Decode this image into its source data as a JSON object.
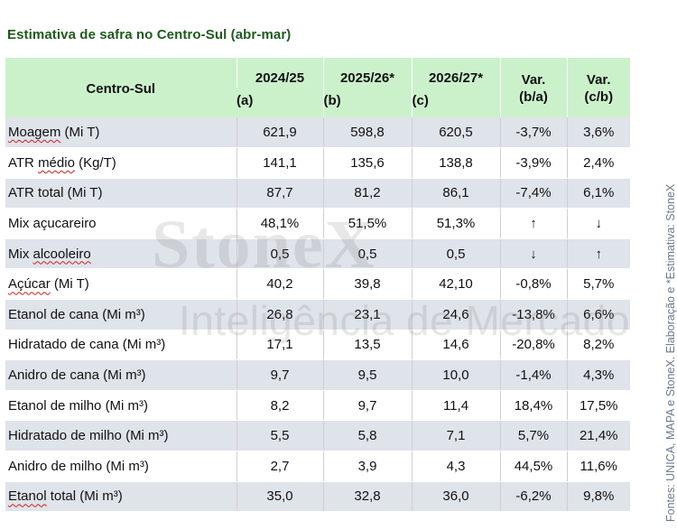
{
  "title": "Estimativa de safra no Centro-Sul (abr-mar)",
  "header": {
    "row_label": "Centro-Sul",
    "years": [
      "2024/25",
      "2025/26*",
      "2026/27*"
    ],
    "letters": [
      "(a)",
      "(b)",
      "(c)"
    ],
    "var1_top": "Var.",
    "var1_bottom": "(b/a)",
    "var2_top": "Var.",
    "var2_bottom": "(c/b)"
  },
  "rows": [
    {
      "label": "Moagem (Mi T)",
      "a": "621,9",
      "b": "598,8",
      "c": "620,5",
      "var_ba": "-3,7%",
      "var_cb": "3,6%"
    },
    {
      "label": "ATR médio (Kg/T)",
      "a": "141,1",
      "b": "135,6",
      "c": "138,8",
      "var_ba": "-3,9%",
      "var_cb": "2,4%"
    },
    {
      "label": "ATR total (Mi T)",
      "a": "87,7",
      "b": "81,2",
      "c": "86,1",
      "var_ba": "-7,4%",
      "var_cb": "6,1%"
    },
    {
      "label": "Mix açucareiro",
      "a": "48,1%",
      "b": "51,5%",
      "c": "51,3%",
      "var_ba": "↑",
      "var_cb": "↓"
    },
    {
      "label": "Mix alcooleiro",
      "a": "0,5",
      "b": "0,5",
      "c": "0,5",
      "var_ba": "↓",
      "var_cb": "↑"
    },
    {
      "label": "Açúcar (Mi T)",
      "a": "40,2",
      "b": "39,8",
      "c": "42,10",
      "var_ba": "-0,8%",
      "var_cb": "5,7%"
    },
    {
      "label": "Etanol de cana (Mi m³)",
      "a": "26,8",
      "b": "23,1",
      "c": "24,6",
      "var_ba": "-13,8%",
      "var_cb": "6,6%"
    },
    {
      "label": "Hidratado de cana (Mi m³)",
      "a": "17,1",
      "b": "13,5",
      "c": "14,6",
      "var_ba": "-20,8%",
      "var_cb": "8,2%"
    },
    {
      "label": "Anidro de cana (Mi m³)",
      "a": "9,7",
      "b": "9,5",
      "c": "10,0",
      "var_ba": "-1,4%",
      "var_cb": "4,3%"
    },
    {
      "label": "Etanol de milho (Mi m³)",
      "a": "8,2",
      "b": "9,7",
      "c": "11,4",
      "var_ba": "18,4%",
      "var_cb": "17,5%"
    },
    {
      "label": "Hidratado de milho (Mi m³)",
      "a": "5,5",
      "b": "5,8",
      "c": "7,1",
      "var_ba": "5,7%",
      "var_cb": "21,4%"
    },
    {
      "label": "Anidro de milho (Mi m³)",
      "a": "2,7",
      "b": "3,9",
      "c": "4,3",
      "var_ba": "44,5%",
      "var_cb": "11,6%"
    },
    {
      "label": "Etanol total (Mi m³)",
      "a": "35,0",
      "b": "32,8",
      "c": "36,0",
      "var_ba": "-6,2%",
      "var_cb": "9,8%"
    }
  ],
  "watermark": {
    "brand": "StoneX",
    "subtitle": "Inteligência de Mercado"
  },
  "source": "Fontes: UNICA, MAPA e StoneX. Elaboração e *Estimativa: StoneX",
  "colors": {
    "title": "#1e5a1e",
    "header_bg": "#cbf1cb",
    "row_shade": "#dfe3ea",
    "source_text": "#6b7a8a"
  }
}
